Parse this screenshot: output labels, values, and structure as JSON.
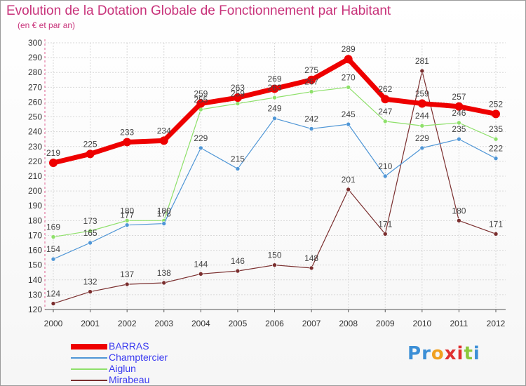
{
  "header": {
    "title": "Evolution de la Dotation Globale de Fonctionnement par Habitant",
    "subtitle": "(en € et par an)"
  },
  "logo": {
    "letters": [
      "P",
      "r",
      "o",
      "x",
      "i",
      "t",
      "i"
    ],
    "colors": [
      "#3c8fd6",
      "#3c8fd6",
      "#f0a020",
      "#e03030",
      "#e03030",
      "#8cc83c",
      "#3c8fd6"
    ]
  },
  "chart_data": {
    "type": "line",
    "title": "Evolution de la Dotation Globale de Fonctionnement par Habitant",
    "subtitle": "(en € et par an)",
    "x": [
      2000,
      2001,
      2002,
      2003,
      2004,
      2005,
      2006,
      2007,
      2008,
      2009,
      2010,
      2011,
      2012
    ],
    "ylim": [
      120,
      300
    ],
    "yticks": [
      120,
      130,
      140,
      150,
      160,
      170,
      180,
      190,
      200,
      210,
      220,
      230,
      240,
      250,
      260,
      270,
      280,
      290,
      300
    ],
    "grid": true,
    "legend_position": "bottom-left",
    "series": [
      {
        "name": "BARRAS",
        "values": [
          219,
          225,
          233,
          234,
          259,
          263,
          269,
          275,
          289,
          262,
          259,
          257,
          252
        ],
        "color": "#ee0000",
        "emphasis": true
      },
      {
        "name": "Champtercier",
        "values": [
          154,
          165,
          177,
          178,
          229,
          215,
          249,
          242,
          245,
          210,
          229,
          235,
          222
        ],
        "color": "#4f96d6",
        "emphasis": false
      },
      {
        "name": "Aiglun",
        "values": [
          169,
          173,
          180,
          180,
          255,
          259,
          263,
          267,
          270,
          247,
          244,
          246,
          235
        ],
        "color": "#8ee06a",
        "emphasis": false
      },
      {
        "name": "Mirabeau",
        "values": [
          124,
          132,
          137,
          138,
          144,
          146,
          150,
          148,
          201,
          171,
          281,
          180,
          171
        ],
        "color": "#7a2e2e",
        "emphasis": false
      }
    ],
    "data_labels": [
      [
        219,
        225,
        233,
        234,
        259,
        263,
        269,
        275,
        289,
        262,
        259,
        257,
        252
      ],
      [
        154,
        165,
        177,
        178,
        229,
        215,
        249,
        242,
        245,
        210,
        229,
        235,
        222
      ],
      [
        169,
        173,
        180,
        180,
        255,
        259,
        263,
        267,
        270,
        247,
        244,
        246,
        235
      ],
      [
        124,
        132,
        137,
        138,
        144,
        146,
        150,
        148,
        201,
        171,
        281,
        180,
        171
      ]
    ]
  }
}
